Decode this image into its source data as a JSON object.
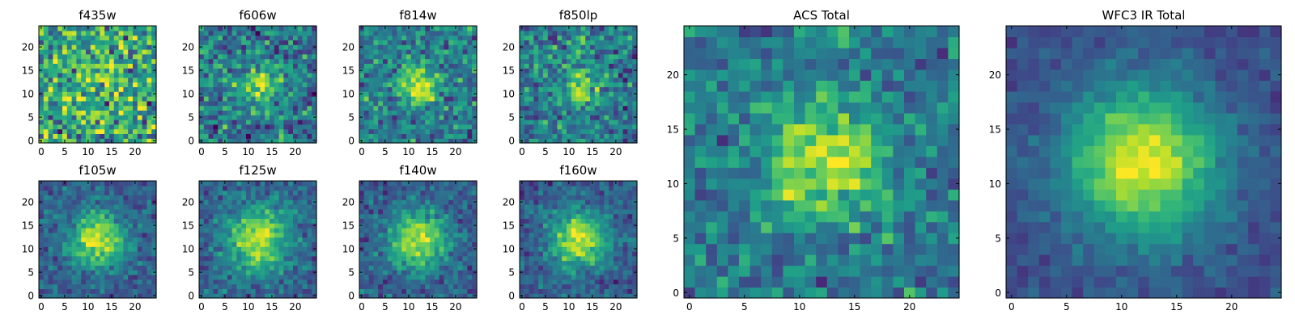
{
  "chart_data": [
    {
      "type": "heatmap",
      "title": "f435w",
      "xticks": [
        "0",
        "5",
        "10",
        "15",
        "20"
      ],
      "yticks": [
        "0",
        "5",
        "10",
        "15",
        "20"
      ],
      "xlim": [
        -0.5,
        24.5
      ],
      "ylim": [
        -0.5,
        24.5
      ],
      "grid_size": 25,
      "peak": [
        12,
        12
      ],
      "colormap": "viridis"
    },
    {
      "type": "heatmap",
      "title": "f606w",
      "xticks": [
        "0",
        "5",
        "10",
        "15",
        "20"
      ],
      "yticks": [
        "0",
        "5",
        "10",
        "15",
        "20"
      ],
      "xlim": [
        -0.5,
        24.5
      ],
      "ylim": [
        -0.5,
        24.5
      ],
      "grid_size": 25,
      "peak": [
        12,
        12
      ],
      "colormap": "viridis"
    },
    {
      "type": "heatmap",
      "title": "f814w",
      "xticks": [
        "0",
        "5",
        "10",
        "15",
        "20"
      ],
      "yticks": [
        "0",
        "5",
        "10",
        "15",
        "20"
      ],
      "xlim": [
        -0.5,
        24.5
      ],
      "ylim": [
        -0.5,
        24.5
      ],
      "grid_size": 25,
      "peak": [
        12,
        12
      ],
      "colormap": "viridis"
    },
    {
      "type": "heatmap",
      "title": "f850lp",
      "xticks": [
        "0",
        "5",
        "10",
        "15",
        "20"
      ],
      "yticks": [
        "0",
        "5",
        "10",
        "15",
        "20"
      ],
      "xlim": [
        -0.5,
        24.5
      ],
      "ylim": [
        -0.5,
        24.5
      ],
      "grid_size": 25,
      "peak": [
        12,
        12
      ],
      "colormap": "viridis"
    },
    {
      "type": "heatmap",
      "title": "f105w",
      "xticks": [
        "0",
        "5",
        "10",
        "15",
        "20"
      ],
      "yticks": [
        "0",
        "5",
        "10",
        "15",
        "20"
      ],
      "xlim": [
        -0.5,
        24.5
      ],
      "ylim": [
        -0.5,
        24.5
      ],
      "grid_size": 25,
      "peak": [
        12,
        12
      ],
      "colormap": "viridis"
    },
    {
      "type": "heatmap",
      "title": "f125w",
      "xticks": [
        "0",
        "5",
        "10",
        "15",
        "20"
      ],
      "yticks": [
        "0",
        "5",
        "10",
        "15",
        "20"
      ],
      "xlim": [
        -0.5,
        24.5
      ],
      "ylim": [
        -0.5,
        24.5
      ],
      "grid_size": 25,
      "peak": [
        12,
        12
      ],
      "colormap": "viridis"
    },
    {
      "type": "heatmap",
      "title": "f140w",
      "xticks": [
        "0",
        "5",
        "10",
        "15",
        "20"
      ],
      "yticks": [
        "0",
        "5",
        "10",
        "15",
        "20"
      ],
      "xlim": [
        -0.5,
        24.5
      ],
      "ylim": [
        -0.5,
        24.5
      ],
      "grid_size": 25,
      "peak": [
        12,
        12
      ],
      "colormap": "viridis"
    },
    {
      "type": "heatmap",
      "title": "f160w",
      "xticks": [
        "0",
        "5",
        "10",
        "15",
        "20"
      ],
      "yticks": [
        "0",
        "5",
        "10",
        "15",
        "20"
      ],
      "xlim": [
        -0.5,
        24.5
      ],
      "ylim": [
        -0.5,
        24.5
      ],
      "grid_size": 25,
      "peak": [
        12,
        12
      ],
      "colormap": "viridis"
    },
    {
      "type": "heatmap",
      "title": "ACS Total",
      "xticks": [
        "0",
        "5",
        "10",
        "15",
        "20"
      ],
      "yticks": [
        "0",
        "5",
        "10",
        "15",
        "20"
      ],
      "xlim": [
        -0.5,
        24.5
      ],
      "ylim": [
        -0.5,
        24.5
      ],
      "grid_size": 25,
      "peak": [
        12,
        12
      ],
      "colormap": "viridis"
    },
    {
      "type": "heatmap",
      "title": "WFC3 IR Total",
      "xticks": [
        "0",
        "5",
        "10",
        "15",
        "20"
      ],
      "yticks": [
        "0",
        "5",
        "10",
        "15",
        "20"
      ],
      "xlim": [
        -0.5,
        24.5
      ],
      "ylim": [
        -0.5,
        24.5
      ],
      "grid_size": 25,
      "peak": [
        12,
        12
      ],
      "colormap": "viridis"
    }
  ]
}
